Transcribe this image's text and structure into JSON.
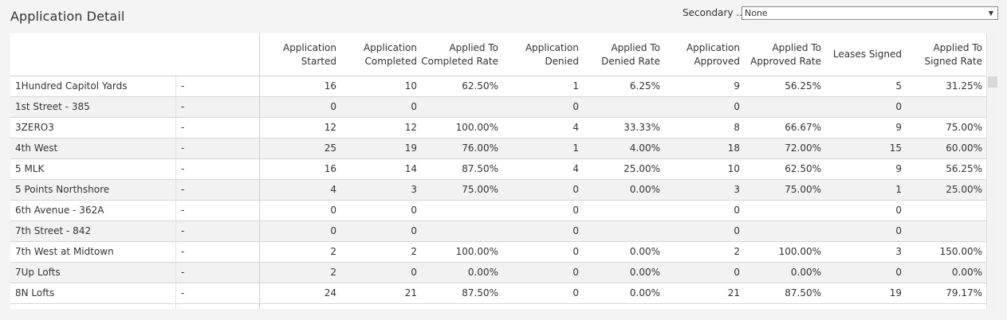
{
  "page": {
    "title": "Application Detail"
  },
  "filter": {
    "label": "Secondary ...",
    "value": "None"
  },
  "table": {
    "columns": [
      "Application\nStarted",
      "Application\nCompleted",
      "Applied To\nCompleted Rate",
      "Application\nDenied",
      "Applied To\nDenied Rate",
      "Application\nApproved",
      "Applied To\nApproved Rate",
      "Leases Signed",
      "Applied To\nSigned Rate"
    ],
    "rows": [
      {
        "name": "1Hundred Capitol Yards",
        "sub": "-",
        "vals": [
          "16",
          "10",
          "62.50%",
          "1",
          "6.25%",
          "9",
          "56.25%",
          "5",
          "31.25%"
        ]
      },
      {
        "name": "1st Street - 385",
        "sub": "-",
        "vals": [
          "0",
          "0",
          "",
          "0",
          "",
          "0",
          "",
          "0",
          ""
        ]
      },
      {
        "name": "3ZERO3",
        "sub": "-",
        "vals": [
          "12",
          "12",
          "100.00%",
          "4",
          "33.33%",
          "8",
          "66.67%",
          "9",
          "75.00%"
        ]
      },
      {
        "name": "4th West",
        "sub": "-",
        "vals": [
          "25",
          "19",
          "76.00%",
          "1",
          "4.00%",
          "18",
          "72.00%",
          "15",
          "60.00%"
        ]
      },
      {
        "name": "5 MLK",
        "sub": "-",
        "vals": [
          "16",
          "14",
          "87.50%",
          "4",
          "25.00%",
          "10",
          "62.50%",
          "9",
          "56.25%"
        ]
      },
      {
        "name": "5 Points Northshore",
        "sub": "-",
        "vals": [
          "4",
          "3",
          "75.00%",
          "0",
          "0.00%",
          "3",
          "75.00%",
          "1",
          "25.00%"
        ]
      },
      {
        "name": "6th Avenue - 362A",
        "sub": "-",
        "vals": [
          "0",
          "0",
          "",
          "0",
          "",
          "0",
          "",
          "0",
          ""
        ]
      },
      {
        "name": "7th Street - 842",
        "sub": "-",
        "vals": [
          "0",
          "0",
          "",
          "0",
          "",
          "0",
          "",
          "0",
          ""
        ]
      },
      {
        "name": "7th West at Midtown",
        "sub": "-",
        "vals": [
          "2",
          "2",
          "100.00%",
          "0",
          "0.00%",
          "2",
          "100.00%",
          "3",
          "150.00%"
        ]
      },
      {
        "name": "7Up Lofts",
        "sub": "-",
        "vals": [
          "2",
          "0",
          "0.00%",
          "0",
          "0.00%",
          "0",
          "0.00%",
          "0",
          "0.00%"
        ]
      },
      {
        "name": "8N Lofts",
        "sub": "-",
        "vals": [
          "24",
          "21",
          "87.50%",
          "0",
          "0.00%",
          "21",
          "87.50%",
          "19",
          "79.17%"
        ]
      }
    ]
  }
}
